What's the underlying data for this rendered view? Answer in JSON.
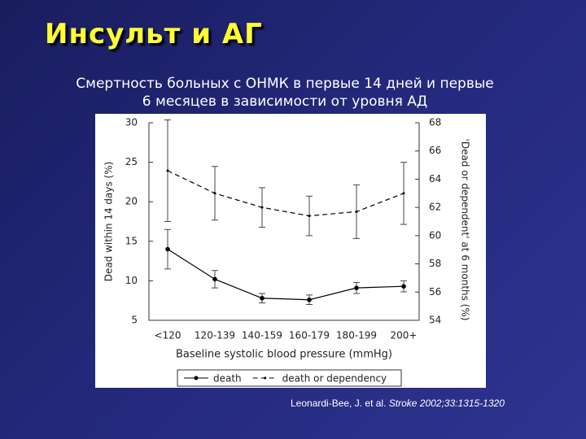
{
  "title": "Инсульт и АГ",
  "subtitle": [
    "Смертность больных с ОНМК в первые 14 дней и первые",
    "6 месяцев в зависимости от уровня АД"
  ],
  "citation": {
    "authors": "Leonardi-Bee, J. et al.",
    "journal": "Stroke 2002;33:1315-1320"
  },
  "chart_data": {
    "type": "line",
    "xlabel": "Baseline systolic blood pressure (mmHg)",
    "ylabel": "Dead within 14 days (%)",
    "y2label": "'Dead or dependent' at 6 months (%)",
    "categories": [
      "<120",
      "120-139",
      "140-159",
      "160-179",
      "180-199",
      "200+"
    ],
    "ylim": [
      5,
      30
    ],
    "yticks": [
      5,
      10,
      15,
      20,
      25,
      30
    ],
    "y2lim": [
      54,
      68
    ],
    "y2ticks": [
      54,
      56,
      58,
      60,
      62,
      64,
      66,
      68
    ],
    "legend": "bottom",
    "series": [
      {
        "name": "death",
        "color": "#000000",
        "dashed": false,
        "values": [
          14.0,
          10.2,
          7.8,
          7.6,
          9.1,
          9.3
        ],
        "errors": [
          2.5,
          1.1,
          0.6,
          0.6,
          0.7,
          0.7
        ]
      },
      {
        "name": "death or dependency",
        "color": "#000000",
        "dashed": true,
        "axis": "y2",
        "values": [
          64.6,
          63.0,
          62.0,
          61.4,
          61.7,
          63.0
        ],
        "errors": [
          3.6,
          1.9,
          1.4,
          1.4,
          1.9,
          2.2
        ]
      }
    ]
  }
}
